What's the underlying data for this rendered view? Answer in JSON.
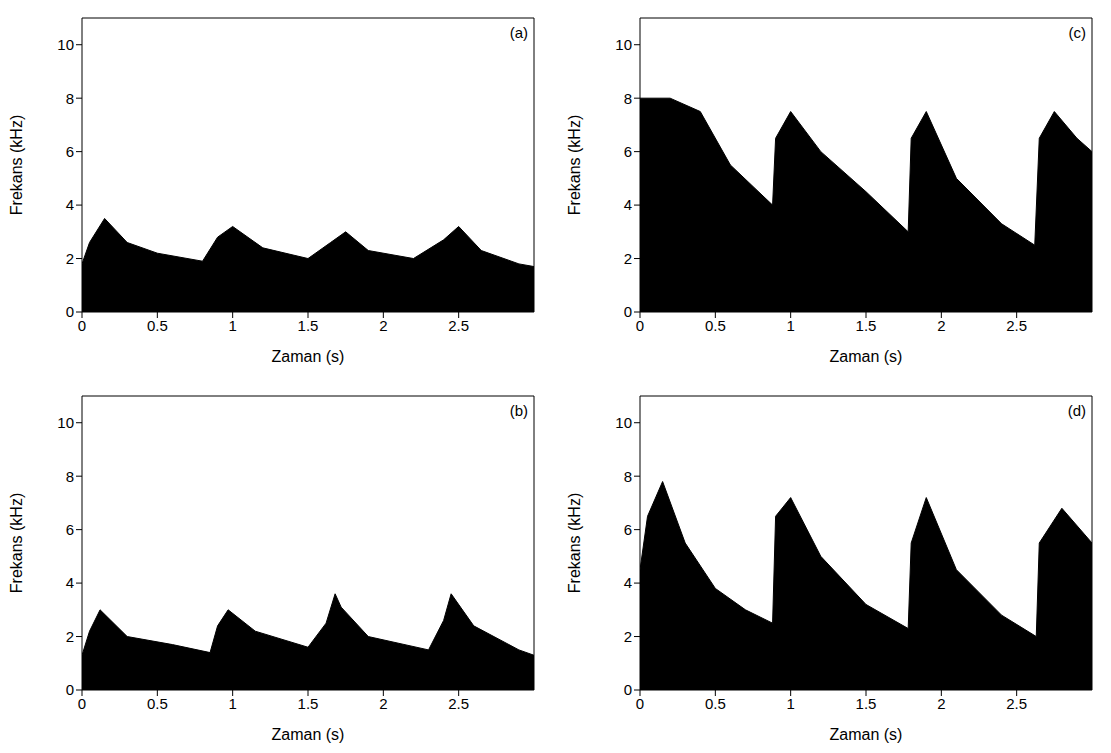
{
  "chart_data": [
    {
      "type": "area",
      "title": "(a)",
      "xlabel": "Zaman (s)",
      "ylabel": "Frekans (kHz)",
      "color": "#000000",
      "x": [
        0,
        0.05,
        0.15,
        0.3,
        0.5,
        0.8,
        0.9,
        1.0,
        1.2,
        1.5,
        1.65,
        1.75,
        1.9,
        2.2,
        2.4,
        2.5,
        2.65,
        2.9,
        3.0
      ],
      "values": [
        1.8,
        2.6,
        3.5,
        2.6,
        2.2,
        1.9,
        2.8,
        3.2,
        2.4,
        2.0,
        2.6,
        3.0,
        2.3,
        2.0,
        2.7,
        3.2,
        2.3,
        1.8,
        1.7
      ],
      "xlim": [
        0,
        3
      ],
      "xticks": [
        0,
        0.5,
        1,
        1.5,
        2,
        2.5
      ],
      "ylim": [
        0,
        11
      ],
      "yticks": [
        0,
        2,
        4,
        6,
        8,
        10
      ]
    },
    {
      "type": "area",
      "title": "(c)",
      "xlabel": "Zaman (s)",
      "ylabel": "Frekans (kHz)",
      "color": "#000000",
      "x": [
        0,
        0.2,
        0.4,
        0.6,
        0.88,
        0.9,
        1.0,
        1.2,
        1.5,
        1.78,
        1.8,
        1.9,
        2.1,
        2.4,
        2.62,
        2.65,
        2.75,
        2.9,
        3.0
      ],
      "values": [
        8,
        8,
        7.5,
        5.5,
        4,
        6.5,
        7.5,
        6,
        4.5,
        3,
        6.5,
        7.5,
        5,
        3.3,
        2.5,
        6.5,
        7.5,
        6.5,
        6
      ],
      "xlim": [
        0,
        3
      ],
      "xticks": [
        0,
        0.5,
        1,
        1.5,
        2,
        2.5
      ],
      "ylim": [
        0,
        11
      ],
      "yticks": [
        0,
        2,
        4,
        6,
        8,
        10
      ]
    },
    {
      "type": "area",
      "title": "(b)",
      "xlabel": "Zaman (s)",
      "ylabel": "Frekans (kHz)",
      "color": "#000000",
      "x": [
        0,
        0.05,
        0.12,
        0.3,
        0.6,
        0.85,
        0.9,
        0.97,
        1.15,
        1.5,
        1.62,
        1.68,
        1.72,
        1.9,
        2.3,
        2.4,
        2.45,
        2.6,
        2.9,
        3.0
      ],
      "values": [
        1.3,
        2.2,
        3.0,
        2.0,
        1.7,
        1.4,
        2.4,
        3.0,
        2.2,
        1.6,
        2.5,
        3.6,
        3.1,
        2.0,
        1.5,
        2.6,
        3.6,
        2.4,
        1.5,
        1.3
      ],
      "xlim": [
        0,
        3
      ],
      "xticks": [
        0,
        0.5,
        1,
        1.5,
        2,
        2.5
      ],
      "ylim": [
        0,
        11
      ],
      "yticks": [
        0,
        2,
        4,
        6,
        8,
        10
      ]
    },
    {
      "type": "area",
      "title": "(d)",
      "xlabel": "Zaman (s)",
      "ylabel": "Frekans (kHz)",
      "color": "#000000",
      "x": [
        0,
        0.05,
        0.15,
        0.3,
        0.5,
        0.7,
        0.88,
        0.9,
        1.0,
        1.2,
        1.5,
        1.78,
        1.8,
        1.9,
        2.1,
        2.4,
        2.63,
        2.65,
        2.8,
        3.0
      ],
      "values": [
        4.5,
        6.5,
        7.8,
        5.5,
        3.8,
        3.0,
        2.5,
        6.5,
        7.2,
        5.0,
        3.2,
        2.3,
        5.5,
        7.2,
        4.5,
        2.8,
        2.0,
        5.5,
        6.8,
        5.5
      ],
      "xlim": [
        0,
        3
      ],
      "xticks": [
        0,
        0.5,
        1,
        1.5,
        2,
        2.5
      ],
      "ylim": [
        0,
        11
      ],
      "yticks": [
        0,
        2,
        4,
        6,
        8,
        10
      ]
    }
  ]
}
